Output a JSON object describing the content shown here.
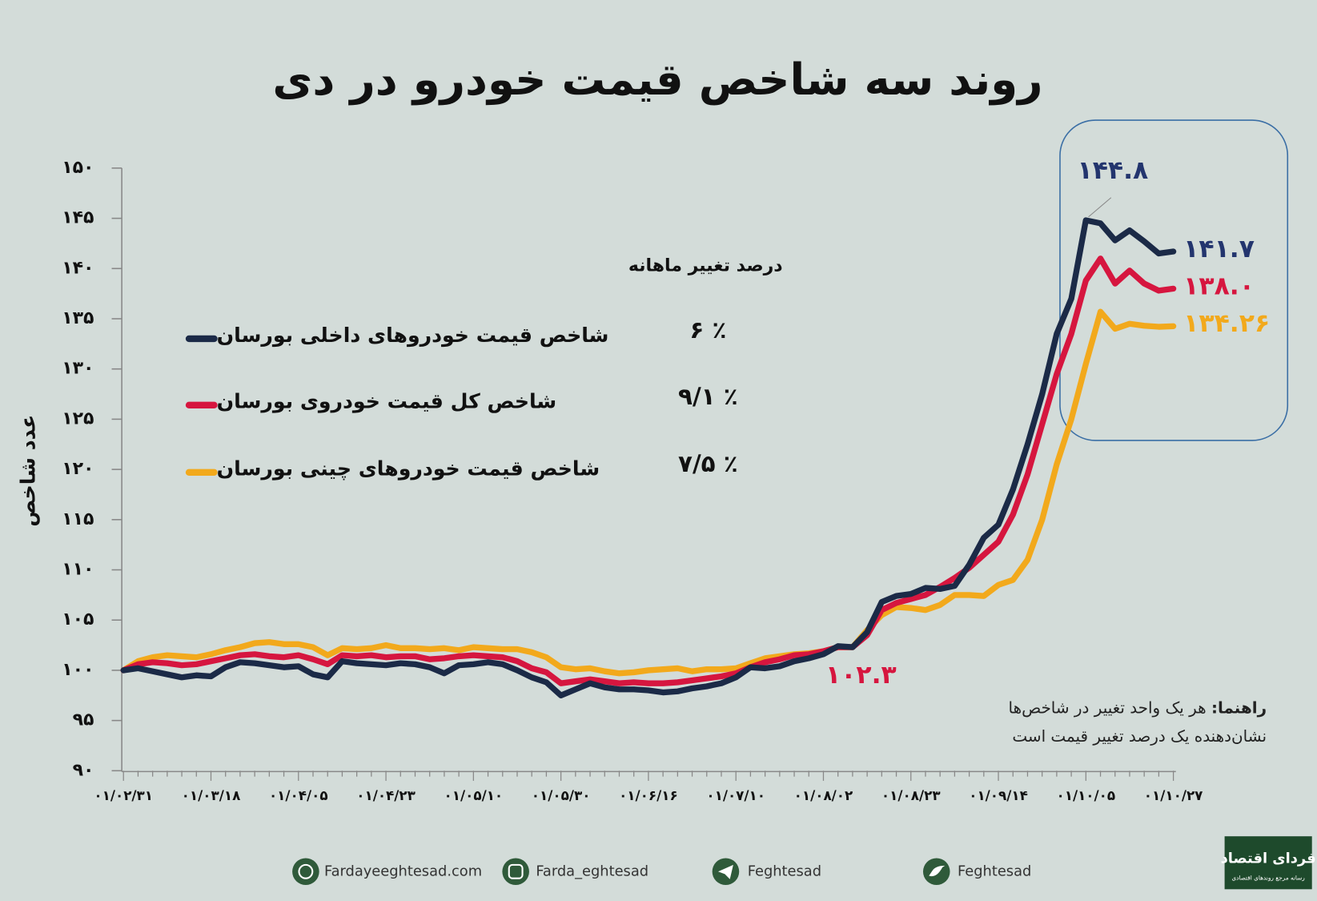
{
  "chart_data": {
    "type": "line",
    "title": "روند سه شاخص قیمت خودرو در دی",
    "y_label": "عدد شاخص",
    "legend_title": "درصد تغییر ماهانه",
    "ylim": [
      90,
      150
    ],
    "yticks": [
      {
        "value": 90,
        "label": "۹۰"
      },
      {
        "value": 95,
        "label": "۹۵"
      },
      {
        "value": 100,
        "label": "۱۰۰"
      },
      {
        "value": 105,
        "label": "۱۰۵"
      },
      {
        "value": 110,
        "label": "۱۱۰"
      },
      {
        "value": 115,
        "label": "۱۱۵"
      },
      {
        "value": 120,
        "label": "۱۲۰"
      },
      {
        "value": 125,
        "label": "۱۲۵"
      },
      {
        "value": 130,
        "label": "۱۳۰"
      },
      {
        "value": 135,
        "label": "۱۳۵"
      },
      {
        "value": 140,
        "label": "۱۴۰"
      },
      {
        "value": 145,
        "label": "۱۴۵"
      },
      {
        "value": 150,
        "label": "۱۵۰"
      }
    ],
    "grid": false,
    "categories": [
      "۰۱/۰۲/۳۱",
      null,
      null,
      null,
      null,
      null,
      "۰۱/۰۳/۱۸",
      null,
      null,
      null,
      null,
      null,
      "۰۱/۰۴/۰۵",
      null,
      null,
      null,
      null,
      null,
      "۰۱/۰۴/۲۳",
      null,
      null,
      null,
      null,
      null,
      "۰۱/۰۵/۱۰",
      null,
      null,
      null,
      null,
      null,
      "۰۱/۰۵/۳۰",
      null,
      null,
      null,
      null,
      null,
      "۰۱/۰۶/۱۶",
      null,
      null,
      null,
      null,
      null,
      "۰۱/۰۷/۱۰",
      null,
      null,
      null,
      null,
      null,
      "۰۱/۰۸/۰۲",
      null,
      null,
      null,
      null,
      null,
      "۰۱/۰۸/۲۳",
      null,
      null,
      null,
      null,
      null,
      "۰۱/۰۹/۱۴",
      null,
      null,
      null,
      null,
      null,
      "۰۱/۱۰/۰۵",
      null,
      null,
      null,
      null,
      null,
      "۰۱/۱۰/۲۷"
    ],
    "series": [
      {
        "name": "شاخص قیمت خودروهای داخلی بورسان",
        "change": "٪ ۶",
        "color": "#1b2a47",
        "label_color": "#23356e",
        "values": [
          100,
          100.2,
          99.9,
          99.6,
          99.3,
          99.5,
          99.4,
          100.3,
          100.8,
          100.7,
          100.5,
          100.3,
          100.4,
          99.6,
          99.3,
          100.9,
          100.7,
          100.6,
          100.5,
          100.7,
          100.6,
          100.3,
          99.7,
          100.5,
          100.6,
          100.8,
          100.6,
          100,
          99.3,
          98.8,
          97.5,
          98.1,
          98.7,
          98.3,
          98.1,
          98.1,
          98,
          97.8,
          97.9,
          98.2,
          98.4,
          98.7,
          99.3,
          100.3,
          100.2,
          100.4,
          100.9,
          101.2,
          101.6,
          102.4,
          102.3,
          103.8,
          106.8,
          107.4,
          107.6,
          108.2,
          108.1,
          108.4,
          110.5,
          113.2,
          114.5,
          118,
          122.5,
          127.5,
          133.5,
          137,
          144.8,
          144.5,
          142.8,
          143.8,
          142.7,
          141.5,
          141.7
        ],
        "value_labels": [
          null,
          null,
          null,
          null,
          null,
          null,
          null,
          null,
          null,
          null,
          null,
          null,
          null,
          null,
          null,
          null,
          null,
          null,
          null,
          null,
          null,
          null,
          null,
          null,
          null,
          null,
          null,
          null,
          null,
          null,
          null,
          null,
          null,
          null,
          null,
          null,
          null,
          null,
          null,
          null,
          null,
          null,
          null,
          null,
          null,
          null,
          null,
          null,
          null,
          null,
          null,
          null,
          null,
          null,
          null,
          null,
          null,
          null,
          null,
          null,
          null,
          null,
          null,
          null,
          null,
          null,
          "۱۴۴.۸",
          null,
          null,
          null,
          null,
          null,
          "۱۴۱.۷"
        ]
      },
      {
        "name": "شاخص کل قیمت خودروی بورسان",
        "change": "٪ ۹/۱",
        "color": "#d6163f",
        "label_color": "#d6163f",
        "values": [
          100,
          100.6,
          100.8,
          100.7,
          100.5,
          100.6,
          100.9,
          101.2,
          101.5,
          101.6,
          101.4,
          101.3,
          101.5,
          101.1,
          100.6,
          101.5,
          101.4,
          101.5,
          101.3,
          101.4,
          101.4,
          101.1,
          101.2,
          101.4,
          101.5,
          101.4,
          101.3,
          100.9,
          100.2,
          99.8,
          98.7,
          98.9,
          99.1,
          98.9,
          98.7,
          98.8,
          98.7,
          98.7,
          98.8,
          99,
          99.2,
          99.4,
          99.7,
          100.3,
          100.8,
          101.1,
          101.5,
          101.6,
          101.9,
          102.3,
          102.3,
          103.5,
          106,
          106.7,
          107.1,
          107.5,
          108.3,
          109.2,
          110.2,
          111.5,
          112.8,
          115.5,
          119.5,
          124.5,
          129.5,
          133.5,
          138.8,
          141,
          138.5,
          139.8,
          138.5,
          137.8,
          138
        ],
        "value_labels": [
          null,
          null,
          null,
          null,
          null,
          null,
          null,
          null,
          null,
          null,
          null,
          null,
          null,
          null,
          null,
          null,
          null,
          null,
          null,
          null,
          null,
          null,
          null,
          null,
          null,
          null,
          null,
          null,
          null,
          null,
          null,
          null,
          null,
          null,
          null,
          null,
          null,
          null,
          null,
          null,
          null,
          null,
          null,
          null,
          null,
          null,
          null,
          null,
          null,
          null,
          "۱۰۲.۳",
          null,
          null,
          null,
          null,
          null,
          null,
          null,
          null,
          null,
          null,
          null,
          null,
          null,
          null,
          null,
          null,
          null,
          null,
          null,
          null,
          null,
          "۱۳۸.۰"
        ]
      },
      {
        "name": "شاخص قیمت خودروهای چینی بورسان",
        "change": "٪ ۷/۵",
        "color": "#f2a91c",
        "label_color": "#f2a91c",
        "values": [
          100,
          100.9,
          101.3,
          101.5,
          101.4,
          101.3,
          101.6,
          102,
          102.3,
          102.7,
          102.8,
          102.6,
          102.6,
          102.3,
          101.5,
          102.2,
          102.1,
          102.2,
          102.5,
          102.2,
          102.2,
          102.1,
          102.2,
          102,
          102.3,
          102.2,
          102.1,
          102.1,
          101.8,
          101.3,
          100.3,
          100.1,
          100.2,
          99.9,
          99.7,
          99.8,
          100,
          100.1,
          100.2,
          99.9,
          100.1,
          100.1,
          100.2,
          100.7,
          101.2,
          101.4,
          101.6,
          101.7,
          101.9,
          102.3,
          102.3,
          104,
          105.5,
          106.3,
          106.2,
          106,
          106.5,
          107.5,
          107.5,
          107.4,
          108.5,
          109,
          111,
          115,
          120.5,
          125,
          130.5,
          135.7,
          134,
          134.5,
          134.3,
          134.2,
          134.26
        ],
        "value_labels": [
          null,
          null,
          null,
          null,
          null,
          null,
          null,
          null,
          null,
          null,
          null,
          null,
          null,
          null,
          null,
          null,
          null,
          null,
          null,
          null,
          null,
          null,
          null,
          null,
          null,
          null,
          null,
          null,
          null,
          null,
          null,
          null,
          null,
          null,
          null,
          null,
          null,
          null,
          null,
          null,
          null,
          null,
          null,
          null,
          null,
          null,
          null,
          null,
          null,
          null,
          null,
          null,
          null,
          null,
          null,
          null,
          null,
          null,
          null,
          null,
          null,
          null,
          null,
          null,
          null,
          null,
          null,
          null,
          null,
          null,
          null,
          null,
          "۱۳۴.۲۶"
        ]
      }
    ],
    "note": {
      "label": "راهنما:",
      "lines": [
        "هر یک واحد تغییر در شاخص‌ها",
        "نشان‌دهنده یک درصد تغییر قیمت است"
      ]
    }
  },
  "footer": {
    "website": "Fardayeeghtesad.com",
    "instagram": "Farda_eghtesad",
    "telegram": "Feghtesad",
    "twitter": "Feghtesad"
  },
  "logo": {
    "name": "فردای اقتصاد",
    "tagline": "رسانه مرجع روندهای اقتصادی"
  }
}
